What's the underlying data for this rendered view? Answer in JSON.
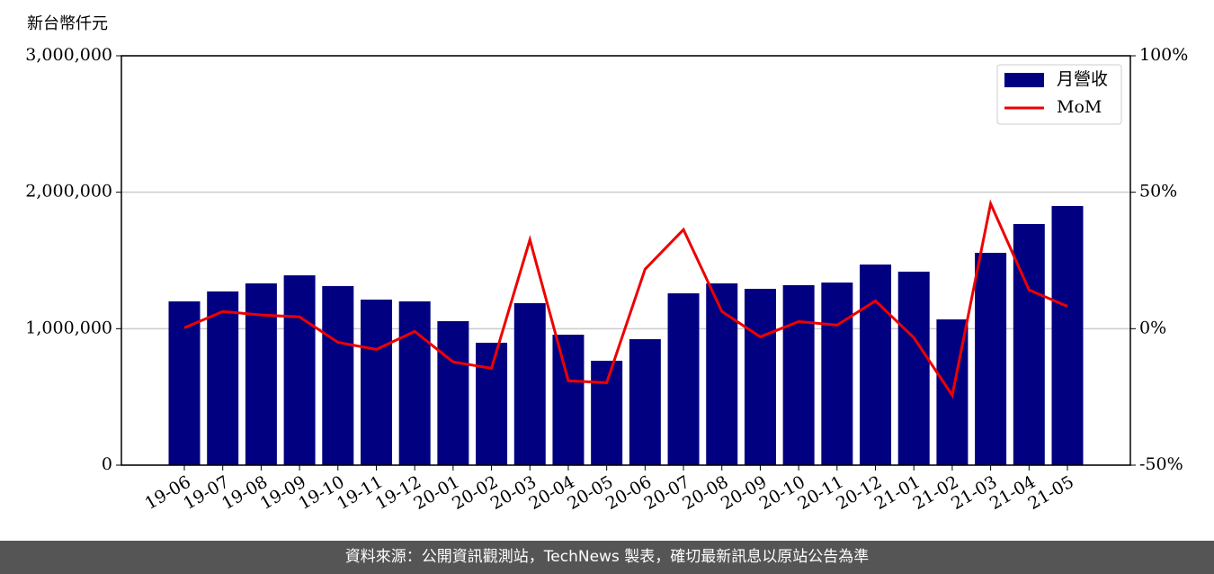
{
  "chart_data": {
    "type": "bar-line",
    "y_label": "新台幣仟元",
    "categories": [
      "19-06",
      "19-07",
      "19-08",
      "19-09",
      "19-10",
      "19-11",
      "19-12",
      "20-01",
      "20-02",
      "20-03",
      "20-04",
      "20-05",
      "20-06",
      "20-07",
      "20-08",
      "20-09",
      "20-10",
      "20-11",
      "20-12",
      "21-01",
      "21-02",
      "21-03",
      "21-04",
      "21-05"
    ],
    "series": [
      {
        "name": "月營收",
        "type": "bar",
        "color": "#000080",
        "values": [
          1200000,
          1273000,
          1332000,
          1391000,
          1312000,
          1213000,
          1200000,
          1055000,
          897000,
          1187000,
          956000,
          765000,
          923000,
          1259000,
          1332000,
          1292000,
          1319000,
          1338000,
          1470000,
          1418000,
          1068000,
          1556000,
          1767000,
          1899000
        ]
      },
      {
        "name": "MoM",
        "type": "line",
        "axis": "y2",
        "color": "#ee0000",
        "values": [
          0.3,
          6.3,
          5,
          4.3,
          -5,
          -7.6,
          -1,
          -12.2,
          -14.5,
          32.6,
          -19.1,
          -19.8,
          21.8,
          36.3,
          6.3,
          -3,
          2.6,
          1.3,
          10.2,
          -3.3,
          -24.4,
          45.8,
          14.2,
          8.2
        ]
      }
    ],
    "ylim": [
      0,
      3000000
    ],
    "yticks": [
      0,
      {
        "value": 1000000,
        "label": "1,000,000"
      },
      {
        "value": 2000000,
        "label": "2,000,000"
      },
      {
        "value": 3000000,
        "label": "3,000,000"
      }
    ],
    "y2lim": [
      -50,
      100
    ],
    "y2ticks": [
      {
        "value": -50,
        "label": "-50%"
      },
      {
        "value": 0,
        "label": "0%"
      },
      {
        "value": 50,
        "label": "50%"
      },
      {
        "value": 100,
        "label": "100%"
      }
    ],
    "grid": true,
    "legend": "upper right",
    "footer": "資料來源：公開資訊觀測站，TechNews 製表，確切最新訊息以原站公告為準"
  }
}
